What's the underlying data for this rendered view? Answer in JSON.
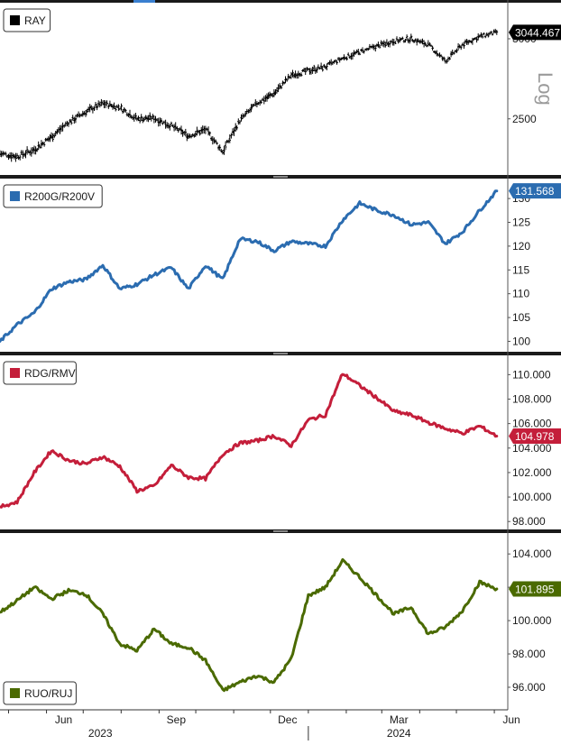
{
  "chart_data": [
    {
      "type": "line",
      "style": "ohlc-bars",
      "legend": "RAY",
      "last_value": "3044.467",
      "color": "#000000",
      "scale_label": "Log",
      "y_ticks": [
        "3000",
        "2500"
      ],
      "y_tick_values": [
        3000,
        2500
      ],
      "ylim": [
        2200,
        3250
      ],
      "log_scale": true,
      "x": [
        "2023-04-24",
        "2023-05-08",
        "2023-05-22",
        "2023-06-05",
        "2023-06-19",
        "2023-07-03",
        "2023-07-17",
        "2023-07-31",
        "2023-08-14",
        "2023-08-28",
        "2023-09-11",
        "2023-09-25",
        "2023-10-09",
        "2023-10-23",
        "2023-11-06",
        "2023-11-20",
        "2023-12-04",
        "2023-12-18",
        "2024-01-01",
        "2024-01-15",
        "2024-01-29",
        "2024-02-12",
        "2024-02-26",
        "2024-03-11",
        "2024-03-25",
        "2024-04-08",
        "2024-04-22",
        "2024-05-06",
        "2024-05-20",
        "2024-06-03"
      ],
      "values": [
        2310,
        2295,
        2330,
        2400,
        2480,
        2540,
        2590,
        2565,
        2500,
        2505,
        2460,
        2405,
        2440,
        2320,
        2490,
        2590,
        2650,
        2760,
        2790,
        2815,
        2870,
        2910,
        2950,
        2985,
        3000,
        2960,
        2850,
        2960,
        3015,
        3044
      ]
    },
    {
      "type": "line",
      "legend": "R200G/R200V",
      "last_value": "131.568",
      "color": "#2b6cb0",
      "y_ticks": [
        "130",
        "125",
        "120",
        "115",
        "110",
        "105",
        "100"
      ],
      "y_tick_values": [
        130,
        125,
        120,
        115,
        110,
        105,
        100
      ],
      "ylim": [
        98,
        134
      ],
      "x": [
        "2023-04-24",
        "2023-05-08",
        "2023-05-22",
        "2023-06-05",
        "2023-06-19",
        "2023-07-03",
        "2023-07-17",
        "2023-07-31",
        "2023-08-14",
        "2023-08-28",
        "2023-09-11",
        "2023-09-25",
        "2023-10-09",
        "2023-10-23",
        "2023-11-06",
        "2023-11-20",
        "2023-12-04",
        "2023-12-18",
        "2024-01-01",
        "2024-01-15",
        "2024-01-29",
        "2024-02-12",
        "2024-02-26",
        "2024-03-11",
        "2024-03-25",
        "2024-04-08",
        "2024-04-22",
        "2024-05-06",
        "2024-05-20",
        "2024-06-03"
      ],
      "values": [
        100,
        103.5,
        106,
        111,
        112.5,
        113,
        116,
        111,
        112,
        114,
        115.5,
        111,
        116,
        113,
        121.5,
        121,
        119,
        121,
        120.5,
        120,
        125.5,
        129,
        127.5,
        126.5,
        124.5,
        125,
        120.5,
        123,
        127.5,
        131.6
      ]
    },
    {
      "type": "line",
      "legend": "RDG/RMV",
      "last_value": "104.978",
      "color": "#c41e3a",
      "y_ticks": [
        "110.000",
        "108.000",
        "106.000",
        "104.000",
        "102.000",
        "100.000",
        "98.000"
      ],
      "y_tick_values": [
        110,
        108,
        106,
        104,
        102,
        100,
        98
      ],
      "ylim": [
        97.5,
        111.5
      ],
      "x": [
        "2023-04-24",
        "2023-05-08",
        "2023-05-22",
        "2023-06-05",
        "2023-06-19",
        "2023-07-03",
        "2023-07-17",
        "2023-07-31",
        "2023-08-14",
        "2023-08-28",
        "2023-09-11",
        "2023-09-25",
        "2023-10-09",
        "2023-10-23",
        "2023-11-06",
        "2023-11-20",
        "2023-12-04",
        "2023-12-18",
        "2024-01-01",
        "2024-01-15",
        "2024-01-29",
        "2024-02-12",
        "2024-02-26",
        "2024-03-11",
        "2024-03-25",
        "2024-04-08",
        "2024-04-22",
        "2024-05-06",
        "2024-05-20",
        "2024-06-03"
      ],
      "values": [
        99.2,
        99.6,
        102,
        103.8,
        103,
        102.7,
        103.3,
        102.5,
        100.5,
        100.9,
        102.6,
        101.6,
        101.5,
        103.5,
        104.4,
        104.6,
        105,
        104.2,
        106.3,
        106.7,
        110.1,
        109.1,
        108.1,
        107,
        106.7,
        106.1,
        105.6,
        105.2,
        105.8,
        104.98
      ]
    },
    {
      "type": "line",
      "legend": "RUO/RUJ",
      "last_value": "101.895",
      "color": "#4a6a00",
      "y_ticks": [
        "104.000",
        "102.000",
        "100.000",
        "98.000",
        "96.000"
      ],
      "y_tick_values": [
        104,
        102,
        100,
        98,
        96
      ],
      "ylim": [
        94.7,
        105.2
      ],
      "x": [
        "2023-04-24",
        "2023-05-08",
        "2023-05-22",
        "2023-06-05",
        "2023-06-19",
        "2023-07-03",
        "2023-07-17",
        "2023-07-31",
        "2023-08-14",
        "2023-08-28",
        "2023-09-11",
        "2023-09-25",
        "2023-10-09",
        "2023-10-23",
        "2023-11-06",
        "2023-11-20",
        "2023-12-04",
        "2023-12-18",
        "2024-01-01",
        "2024-01-15",
        "2024-01-29",
        "2024-02-12",
        "2024-02-26",
        "2024-03-11",
        "2024-03-25",
        "2024-04-08",
        "2024-04-22",
        "2024-05-06",
        "2024-05-20",
        "2024-06-03"
      ],
      "values": [
        100.5,
        101.2,
        102,
        101.3,
        101.8,
        101.6,
        100.4,
        98.6,
        98.2,
        99.5,
        98.6,
        98.4,
        97.6,
        95.8,
        96.3,
        96.7,
        96.3,
        97.7,
        101.5,
        102,
        103.6,
        102.6,
        101.5,
        100.4,
        100.8,
        99.2,
        99.6,
        100.6,
        102.3,
        101.9
      ]
    }
  ],
  "x_axis": {
    "months": [
      {
        "label": "Jun",
        "date": "2023-06-15"
      },
      {
        "label": "Sep",
        "date": "2023-09-15"
      },
      {
        "label": "Dec",
        "date": "2023-12-15"
      },
      {
        "label": "Mar",
        "date": "2024-03-15"
      },
      {
        "label": "Jun",
        "date": "2024-06-15"
      }
    ],
    "years": [
      {
        "label": "2023",
        "date": "2023-07-15"
      },
      {
        "label": "2024",
        "date": "2024-03-15"
      }
    ],
    "year_divider_date": "2024-01-01",
    "start_date": "2023-04-24",
    "end_date": "2024-06-12",
    "tick_dates": [
      "2023-05-01",
      "2023-06-01",
      "2023-07-01",
      "2023-08-01",
      "2023-09-01",
      "2023-10-01",
      "2023-11-01",
      "2023-12-01",
      "2024-01-01",
      "2024-02-01",
      "2024-03-01",
      "2024-04-01",
      "2024-05-01",
      "2024-06-01"
    ]
  }
}
